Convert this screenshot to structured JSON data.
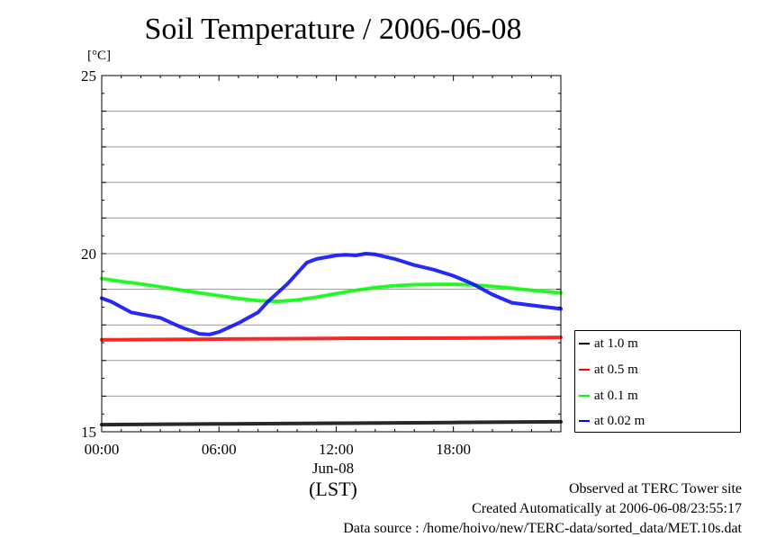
{
  "header": {
    "title": "Soil Temperature / 2006-06-08",
    "unit_label": "[°C]"
  },
  "axis": {
    "x_sublabel": "Jun-08",
    "x_unit_label": "(LST)"
  },
  "footer": {
    "line1": "Observed at TERC Tower site",
    "line2": "Created Automatically at 2006-06-08/23:55:17",
    "line3": "Data source : /home/hoivo/new/TERC-data/sorted_data/MET.10s.dat"
  },
  "legend": {
    "position": "right",
    "items": [
      {
        "label": "at 1.0 m",
        "color": "#000000"
      },
      {
        "label": "at 0.5 m",
        "color": "#ff0000"
      },
      {
        "label": "at 0.1 m",
        "color": "#00ff00"
      },
      {
        "label": "at 0.02 m",
        "color": "#0000ff"
      }
    ]
  },
  "chart_data": {
    "type": "line",
    "title": "Soil Temperature / 2006-06-08",
    "ylabel": "[°C]",
    "xlabel": "(LST)",
    "xlim": [
      0,
      23.5
    ],
    "ylim": [
      15,
      25
    ],
    "y_ticks": [
      15,
      20,
      25
    ],
    "x_ticks": [
      {
        "value": 0,
        "label": "00:00"
      },
      {
        "value": 6,
        "label": "06:00"
      },
      {
        "value": 12,
        "label": "12:00"
      },
      {
        "value": 18,
        "label": "18:00"
      }
    ],
    "grid": true,
    "series": [
      {
        "name": "at 1.0 m",
        "color": "#000000",
        "x": [
          0,
          6,
          12,
          18,
          23.5
        ],
        "y": [
          15.2,
          15.22,
          15.24,
          15.26,
          15.28
        ]
      },
      {
        "name": "at 0.5 m",
        "color": "#ff0000",
        "x": [
          0,
          6,
          12,
          18,
          23.5
        ],
        "y": [
          17.58,
          17.6,
          17.62,
          17.63,
          17.65
        ]
      },
      {
        "name": "at 0.1 m",
        "color": "#00ff00",
        "x": [
          0,
          1,
          2,
          3,
          4,
          5,
          6,
          7,
          8,
          9,
          10,
          11,
          12,
          13,
          14,
          15,
          16,
          17,
          18,
          19,
          20,
          21,
          22,
          23.5
        ],
        "y": [
          19.3,
          19.22,
          19.15,
          19.07,
          18.98,
          18.9,
          18.82,
          18.74,
          18.68,
          18.66,
          18.7,
          18.78,
          18.88,
          18.97,
          19.05,
          19.1,
          19.13,
          19.14,
          19.14,
          19.12,
          19.08,
          19.03,
          18.97,
          18.9
        ]
      },
      {
        "name": "at 0.02 m",
        "color": "#0000ff",
        "x": [
          0,
          0.5,
          1,
          1.5,
          2,
          3,
          4,
          5,
          5.5,
          6,
          7,
          8,
          8.5,
          9,
          9.5,
          10,
          10.5,
          11,
          12,
          12.5,
          13,
          13.5,
          14,
          15,
          16,
          17,
          18,
          19,
          20,
          21,
          22,
          23.5
        ],
        "y": [
          18.75,
          18.65,
          18.5,
          18.35,
          18.3,
          18.2,
          17.95,
          17.75,
          17.73,
          17.8,
          18.05,
          18.35,
          18.65,
          18.9,
          19.15,
          19.45,
          19.75,
          19.85,
          19.95,
          19.97,
          19.95,
          20.0,
          19.98,
          19.85,
          19.68,
          19.55,
          19.38,
          19.15,
          18.85,
          18.62,
          18.55,
          18.45
        ]
      }
    ]
  }
}
